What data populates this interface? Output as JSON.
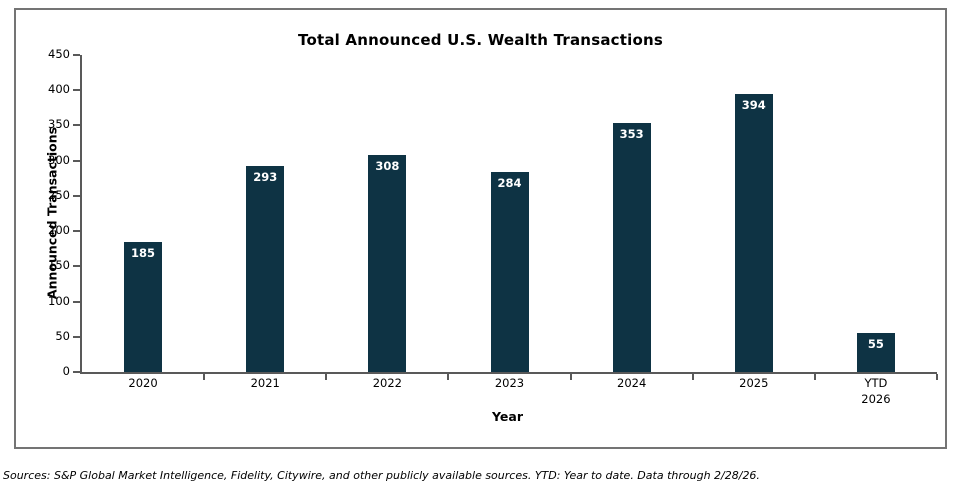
{
  "chart_data": {
    "type": "bar",
    "title": "Total Announced U.S. Wealth Transactions",
    "xlabel": "Year",
    "ylabel": "Announced Transactions",
    "categories": [
      "2020",
      "2021",
      "2022",
      "2023",
      "2024",
      "2025",
      "YTD\n2026"
    ],
    "values": [
      185,
      293,
      308,
      284,
      353,
      394,
      55
    ],
    "ylim": [
      0,
      450
    ],
    "ytick_step": 50,
    "bar_color": "#0e3344",
    "axis_color": "#595959",
    "data_label_color": "#ffffff",
    "grid": false,
    "legend": false
  },
  "footnote": "Sources: S&P Global Market Intelligence, Fidelity, Citywire, and other publicly available sources. YTD: Year to date. Data through 2/28/26."
}
